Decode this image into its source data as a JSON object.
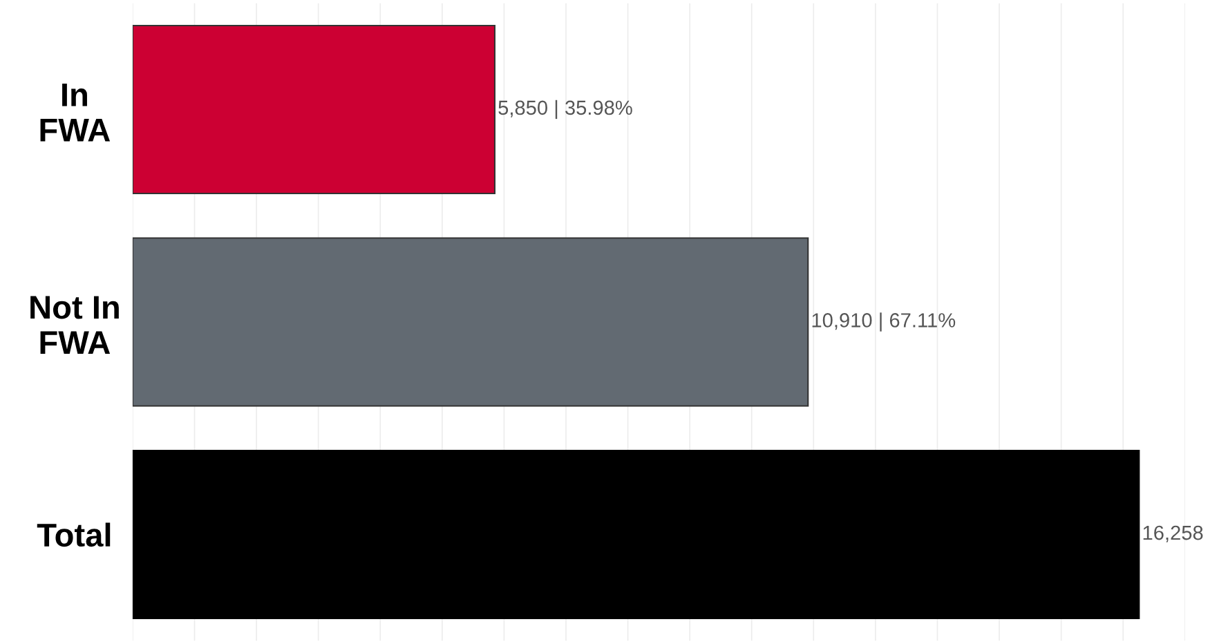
{
  "chart_data": {
    "type": "bar",
    "orientation": "horizontal",
    "categories": [
      "In\nFWA",
      "Not In\nFWA",
      "Total"
    ],
    "values": [
      5850,
      10910,
      16258
    ],
    "colors": [
      "#cc0033",
      "#626a72",
      "#000000"
    ],
    "value_labels": [
      "5,850 | 35.98%",
      "10,910 | 67.11%",
      "16,258"
    ],
    "xticks": [
      {
        "value": 0,
        "label": null
      },
      {
        "value": 1000,
        "label": null
      },
      {
        "value": 2000,
        "label": null
      },
      {
        "value": 3000,
        "label": null
      },
      {
        "value": 4000,
        "label": null
      },
      {
        "value": 5000,
        "label": null
      },
      {
        "value": 6000,
        "label": null
      },
      {
        "value": 7000,
        "label": null
      },
      {
        "value": 8000,
        "label": null
      },
      {
        "value": 9000,
        "label": null
      },
      {
        "value": 10000,
        "label": null
      },
      {
        "value": 11000,
        "label": null
      },
      {
        "value": 12000,
        "label": null
      },
      {
        "value": 13000,
        "label": null
      },
      {
        "value": 14000,
        "label": null
      },
      {
        "value": 15000,
        "label": null
      },
      {
        "value": 16000,
        "label": null
      },
      {
        "value": 17000,
        "label": null
      }
    ],
    "grid": "x",
    "tick_labels": "y"
  }
}
